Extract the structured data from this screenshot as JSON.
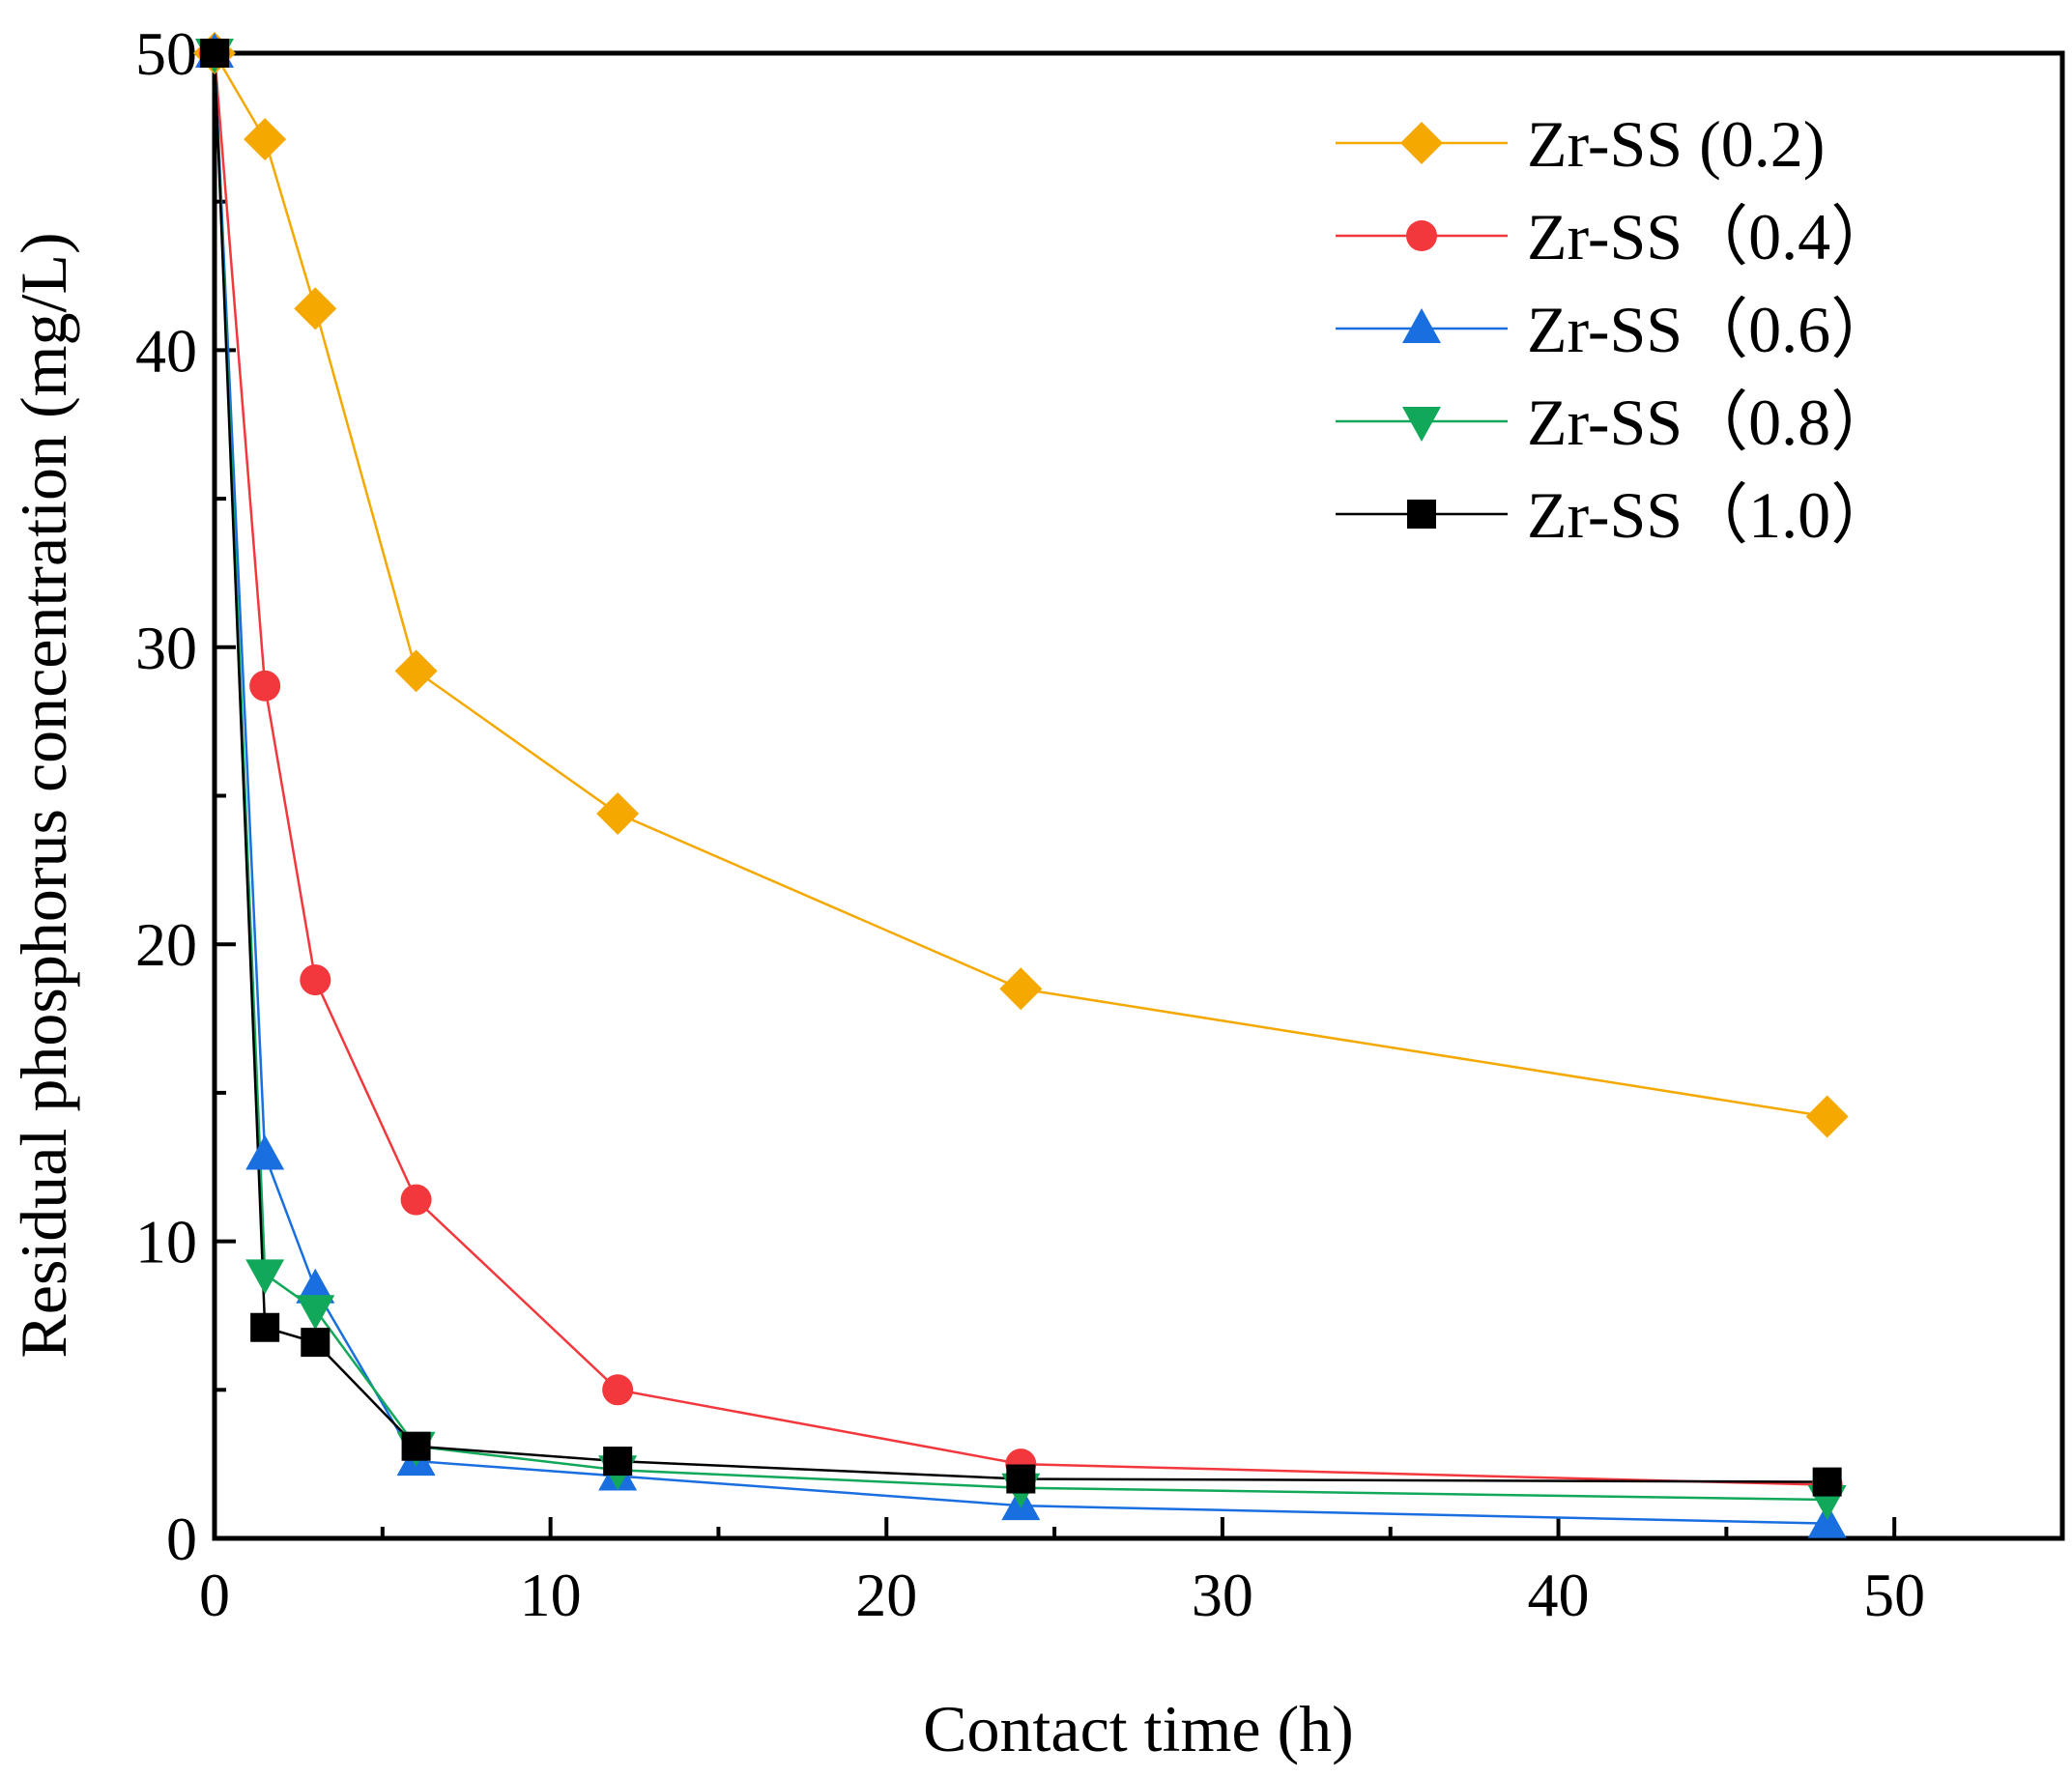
{
  "chart_data": {
    "type": "line",
    "title": "",
    "xlabel": "Contact time (h)",
    "ylabel": "Residual phosphorus concentration (mg/L)",
    "xlim": [
      0,
      55
    ],
    "ylim": [
      0,
      50
    ],
    "xticks": [
      0,
      10,
      20,
      30,
      40,
      50
    ],
    "yticks": [
      0,
      10,
      20,
      30,
      40,
      50
    ],
    "legend_position": "top-right",
    "x": [
      0,
      1.5,
      3,
      6,
      12,
      24,
      48
    ],
    "series": [
      {
        "name": "Zr-SS (0.2)",
        "color": "#F5A800",
        "marker": "diamond",
        "values": [
          50,
          47.1,
          41.4,
          29.2,
          24.4,
          18.5,
          14.2
        ]
      },
      {
        "name": "Zr-SS（0.4）",
        "color": "#F2383C",
        "marker": "circle",
        "values": [
          50,
          28.7,
          18.8,
          11.4,
          5.0,
          2.5,
          1.8
        ]
      },
      {
        "name": "Zr-SS（0.6）",
        "color": "#1A6FE0",
        "marker": "triangle-up",
        "values": [
          50,
          12.9,
          8.4,
          2.6,
          2.1,
          1.1,
          0.5
        ]
      },
      {
        "name": "Zr-SS（0.8）",
        "color": "#12A85A",
        "marker": "triangle-down",
        "values": [
          50,
          8.9,
          7.7,
          3.1,
          2.3,
          1.7,
          1.3
        ]
      },
      {
        "name": "Zr-SS（1.0）",
        "color": "#000000",
        "marker": "square",
        "values": [
          50,
          7.1,
          6.6,
          3.1,
          2.6,
          2.0,
          1.9
        ]
      }
    ]
  }
}
